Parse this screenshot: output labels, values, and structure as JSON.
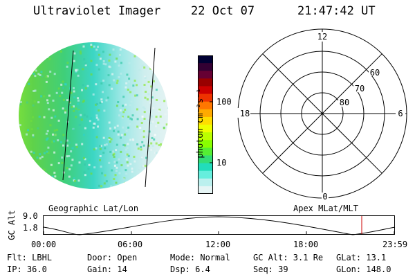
{
  "header": {
    "instrument": "Ultraviolet Imager",
    "date": "22 Oct 07",
    "time": "21:47:42 UT"
  },
  "colorbar": {
    "label": "photon cm⁻²s⁻¹",
    "ticks": [
      "100",
      "10"
    ],
    "colors": [
      "#000033",
      "#330033",
      "#660033",
      "#990000",
      "#cc0000",
      "#ee3300",
      "#ff7700",
      "#ffaa00",
      "#ffdd00",
      "#eeff00",
      "#bbff00",
      "#88ff00",
      "#55ee33",
      "#33dd77",
      "#22ddbb",
      "#66eedd",
      "#bbf0ee",
      "#e6f5f5"
    ]
  },
  "polar_plot": {
    "clock_labels": [
      "12",
      "18",
      "6",
      "0"
    ],
    "lat_labels": [
      "60",
      "70",
      "80"
    ]
  },
  "footer_labels": {
    "left": "Geographic Lat/Lon",
    "right": "Apex MLat/MLT"
  },
  "altitude_strip": {
    "axis_label": "GC Alt",
    "y_ticks": [
      "9.0",
      "1.8"
    ],
    "x_ticks": [
      "00:00",
      "06:00",
      "12:00",
      "18:00",
      "23:59"
    ]
  },
  "info": {
    "flt": "Flt: LBHL",
    "ip": "IP: 36.0",
    "door": "Door: Open",
    "gain": "Gain: 14",
    "mode": "Mode: Normal",
    "dsp": "Dsp:    6.4",
    "gcalt": "GC Alt: 3.1 Re",
    "seq": "Seq: 39",
    "glat": "GLat:  13.1",
    "glon": "GLon: 148.0"
  }
}
